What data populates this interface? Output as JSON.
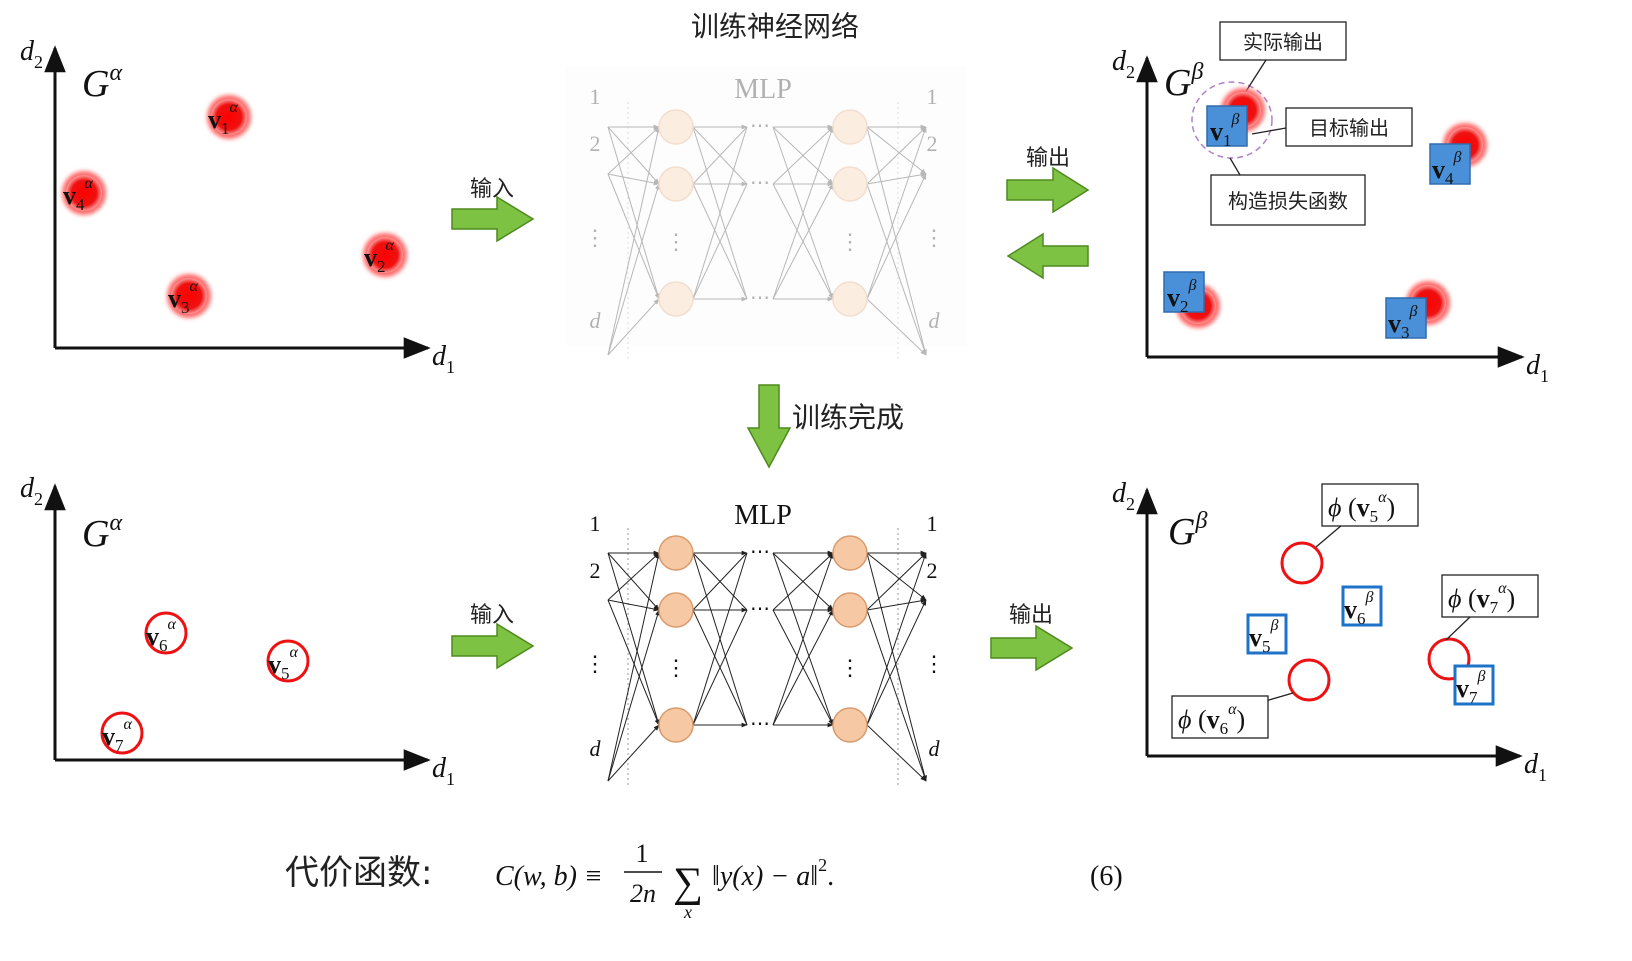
{
  "labels": {
    "train_title": "训练神经网络",
    "mlp": "MLP",
    "input": "输入",
    "output": "输出",
    "training_done": "训练完成",
    "actual_output": "实际输出",
    "target_output": "目标输出",
    "build_loss": "构造损失函数",
    "cost_label": "代价函数:",
    "eq_number": "(6)"
  },
  "axes": {
    "d1": "d",
    "d2": "d",
    "sub1": "1",
    "sub2": "2"
  },
  "graphs": {
    "g_alpha": "G",
    "g_alpha_sup": "α",
    "g_beta": "G",
    "g_beta_sup": "β"
  },
  "points": {
    "alpha_top": [
      {
        "sub": "1",
        "sup": "α"
      },
      {
        "sub": "2",
        "sup": "α"
      },
      {
        "sub": "3",
        "sup": "α"
      },
      {
        "sub": "4",
        "sup": "α"
      }
    ],
    "beta_top": [
      {
        "sub": "1",
        "sup": "β"
      },
      {
        "sub": "2",
        "sup": "β"
      },
      {
        "sub": "3",
        "sup": "β"
      },
      {
        "sub": "4",
        "sup": "β"
      }
    ],
    "alpha_bottom": [
      {
        "sub": "6",
        "sup": "α"
      },
      {
        "sub": "5",
        "sup": "α"
      },
      {
        "sub": "7",
        "sup": "α"
      }
    ],
    "beta_bottom": [
      {
        "sub": "5",
        "sup": "β"
      },
      {
        "sub": "6",
        "sup": "β"
      },
      {
        "sub": "7",
        "sup": "β"
      }
    ],
    "phi_labels": [
      {
        "phi": "ϕ",
        "sub": "5",
        "sup": "α"
      },
      {
        "phi": "ϕ",
        "sub": "7",
        "sup": "α"
      },
      {
        "phi": "ϕ",
        "sub": "6",
        "sup": "α"
      }
    ]
  },
  "mlp": {
    "in_labels": [
      "1",
      "2",
      "⋮",
      "d"
    ],
    "out_labels": [
      "1",
      "2",
      "⋮",
      "d"
    ]
  },
  "formula": {
    "lhs": "C(w, b) ≡",
    "num": "1",
    "den": "2n",
    "sum": "∑",
    "sum_sub": "x",
    "body": "‖y(x) − a‖",
    "exp": "2",
    "tail": "."
  },
  "colors": {
    "arrow_green": "#7dc242",
    "arrow_stroke": "#4f8a1f",
    "red_point": "#ee1111",
    "blue_box": "#4a90d9",
    "node_fill": "#f6c9a4",
    "node_stroke": "#d99a6c"
  }
}
